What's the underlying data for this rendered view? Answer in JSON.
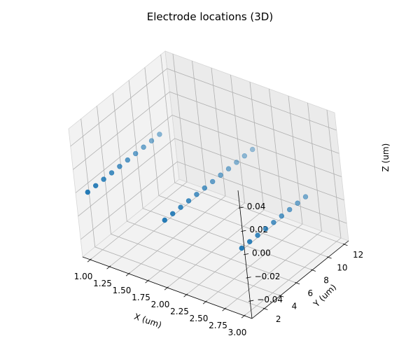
{
  "chart_data": {
    "type": "scatter",
    "title": "Electrode locations (3D)",
    "xlabel": "X (um)",
    "ylabel": "Y (um)",
    "zlabel": "Z (um)",
    "xlim": [
      0.9,
      3.1
    ],
    "ylim": [
      0.45,
      12.55
    ],
    "zlim": [
      -0.055,
      0.055
    ],
    "x_ticks": [
      "1.00",
      "1.25",
      "1.50",
      "1.75",
      "2.00",
      "2.25",
      "2.50",
      "2.75",
      "3.00"
    ],
    "y_ticks": [
      "2",
      "4",
      "6",
      "8",
      "10",
      "12"
    ],
    "z_ticks": [
      "0.04",
      "0.02",
      "0.00",
      "−0.02",
      "−0.04"
    ],
    "grid": true,
    "marker_color": "#1f77b4",
    "points": [
      {
        "x": 1,
        "y": 1,
        "z": 0
      },
      {
        "x": 1,
        "y": 2,
        "z": 0
      },
      {
        "x": 1,
        "y": 3,
        "z": 0
      },
      {
        "x": 1,
        "y": 4,
        "z": 0
      },
      {
        "x": 1,
        "y": 5,
        "z": 0
      },
      {
        "x": 1,
        "y": 6,
        "z": 0
      },
      {
        "x": 1,
        "y": 7,
        "z": 0
      },
      {
        "x": 1,
        "y": 8,
        "z": 0
      },
      {
        "x": 1,
        "y": 9,
        "z": 0
      },
      {
        "x": 1,
        "y": 10,
        "z": 0
      },
      {
        "x": 2,
        "y": 1,
        "z": 0
      },
      {
        "x": 2,
        "y": 2,
        "z": 0
      },
      {
        "x": 2,
        "y": 3,
        "z": 0
      },
      {
        "x": 2,
        "y": 4,
        "z": 0
      },
      {
        "x": 2,
        "y": 5,
        "z": 0
      },
      {
        "x": 2,
        "y": 6,
        "z": 0
      },
      {
        "x": 2,
        "y": 7,
        "z": 0
      },
      {
        "x": 2,
        "y": 8,
        "z": 0
      },
      {
        "x": 2,
        "y": 9,
        "z": 0
      },
      {
        "x": 2,
        "y": 10,
        "z": 0
      },
      {
        "x": 2,
        "y": 11,
        "z": 0
      },
      {
        "x": 2,
        "y": 12,
        "z": 0
      },
      {
        "x": 3,
        "y": 1,
        "z": 0
      },
      {
        "x": 3,
        "y": 2,
        "z": 0
      },
      {
        "x": 3,
        "y": 3,
        "z": 0
      },
      {
        "x": 3,
        "y": 4,
        "z": 0
      },
      {
        "x": 3,
        "y": 5,
        "z": 0
      },
      {
        "x": 3,
        "y": 6,
        "z": 0
      },
      {
        "x": 3,
        "y": 7,
        "z": 0
      },
      {
        "x": 3,
        "y": 8,
        "z": 0
      },
      {
        "x": 3,
        "y": 9,
        "z": 0
      }
    ]
  }
}
